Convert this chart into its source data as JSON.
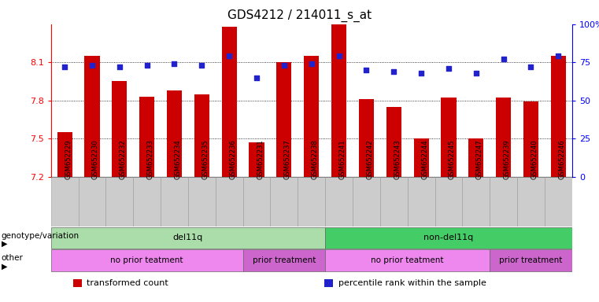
{
  "title": "GDS4212 / 214011_s_at",
  "samples": [
    "GSM652229",
    "GSM652230",
    "GSM652232",
    "GSM652233",
    "GSM652234",
    "GSM652235",
    "GSM652236",
    "GSM652231",
    "GSM652237",
    "GSM652238",
    "GSM652241",
    "GSM652242",
    "GSM652243",
    "GSM652244",
    "GSM652245",
    "GSM652247",
    "GSM652239",
    "GSM652240",
    "GSM652246"
  ],
  "bar_values": [
    7.55,
    8.15,
    7.95,
    7.83,
    7.88,
    7.85,
    8.38,
    7.47,
    8.1,
    8.15,
    8.4,
    7.81,
    7.75,
    7.5,
    7.82,
    7.5,
    7.82,
    7.79,
    8.15
  ],
  "dot_values": [
    72,
    73,
    72,
    73,
    74,
    73,
    79,
    65,
    73,
    74,
    79,
    70,
    69,
    68,
    71,
    68,
    77,
    72,
    79
  ],
  "ylim_left": [
    7.2,
    8.4
  ],
  "ylim_right": [
    0,
    100
  ],
  "yticks_left": [
    7.2,
    7.5,
    7.8,
    8.1
  ],
  "yticks_right": [
    0,
    25,
    50,
    75,
    100
  ],
  "ytick_labels_right": [
    "0",
    "25",
    "50",
    "75",
    "100%"
  ],
  "bar_color": "#cc0000",
  "dot_color": "#2222cc",
  "groups": [
    {
      "label": "del11q",
      "start": 0,
      "end": 10,
      "color": "#aaddaa"
    },
    {
      "label": "non-del11q",
      "start": 10,
      "end": 19,
      "color": "#44cc66"
    }
  ],
  "treatments": [
    {
      "label": "no prior teatment",
      "start": 0,
      "end": 7,
      "color": "#ee88ee"
    },
    {
      "label": "prior treatment",
      "start": 7,
      "end": 10,
      "color": "#cc66cc"
    },
    {
      "label": "no prior teatment",
      "start": 10,
      "end": 16,
      "color": "#ee88ee"
    },
    {
      "label": "prior treatment",
      "start": 16,
      "end": 19,
      "color": "#cc66cc"
    }
  ],
  "legend_items": [
    {
      "label": "transformed count",
      "color": "#cc0000"
    },
    {
      "label": "percentile rank within the sample",
      "color": "#2222cc"
    }
  ],
  "title_fontsize": 11,
  "bar_width": 0.55
}
